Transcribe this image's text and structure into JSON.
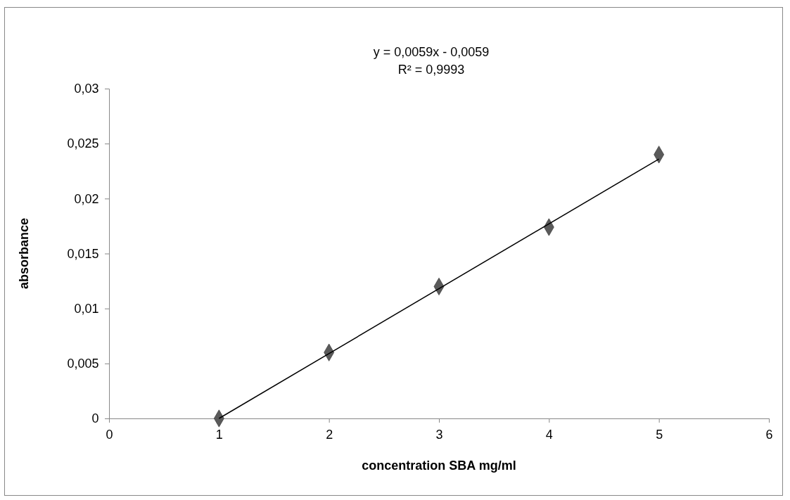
{
  "chart_data": {
    "type": "scatter",
    "xlabel": "concentration SBA mg/ml",
    "ylabel": "absorbance",
    "marker": "diamond",
    "xlim": [
      0,
      6
    ],
    "xticks": [
      0,
      1,
      2,
      3,
      4,
      5,
      6
    ],
    "ylim": [
      0,
      0.03
    ],
    "yticks": [
      0,
      {
        "value": 0.005,
        "label": "0,005"
      },
      {
        "value": 0.01,
        "label": "0,01"
      },
      {
        "value": 0.015,
        "label": "0,015"
      },
      {
        "value": 0.02,
        "label": "0,02"
      },
      {
        "value": 0.025,
        "label": "0,025"
      },
      {
        "value": 0.03,
        "label": "0,03"
      }
    ],
    "x": [
      1,
      2,
      3,
      4,
      5
    ],
    "series": [
      {
        "color": "#5a5a5a",
        "values": [
          0,
          0.006,
          0.012,
          0.0174,
          0.024
        ]
      },
      {
        "type": "line",
        "color": "#000000",
        "x": [
          1,
          5
        ],
        "values": [
          0,
          0.0236
        ],
        "marker": "none"
      }
    ],
    "annotations": [
      "y = 0,0059x - 0,0059",
      "R² = 0,9993"
    ]
  }
}
